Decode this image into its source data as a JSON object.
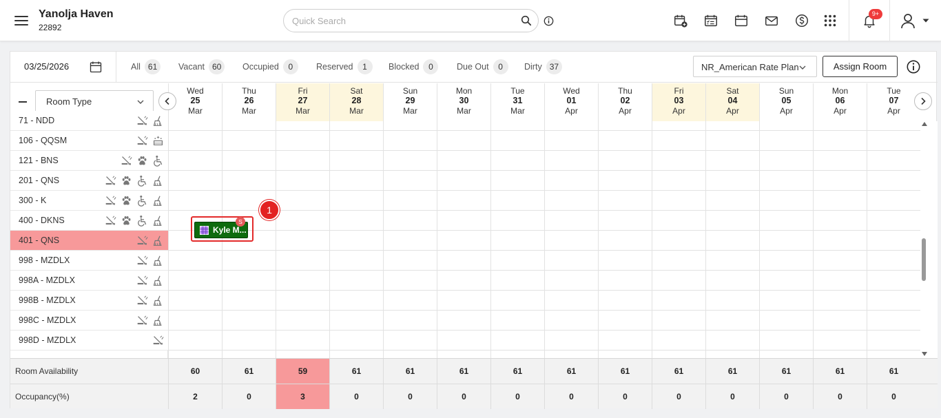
{
  "app": {
    "hotel_name": "Yanolja Haven",
    "hotel_id": "22892"
  },
  "search": {
    "placeholder": "Quick Search"
  },
  "toolbar_icons": [
    "new-reservation-icon",
    "checklist-calendar-icon",
    "calendar-icon",
    "mail-icon",
    "dollar-icon",
    "apps-grid-icon",
    "notification-bell-icon",
    "user-profile-icon"
  ],
  "notifications": {
    "badge": "9+"
  },
  "filters": {
    "date": "03/25/2026",
    "chips": [
      {
        "label": "All",
        "count": "61"
      },
      {
        "label": "Vacant",
        "count": "60"
      },
      {
        "label": "Occupied",
        "count": "0"
      },
      {
        "label": "Reserved",
        "count": "1"
      },
      {
        "label": "Blocked",
        "count": "0"
      },
      {
        "label": "Due Out",
        "count": "0"
      },
      {
        "label": "Dirty",
        "count": "37"
      }
    ],
    "rate_plan": "NR_American Rate Plan",
    "assign_label": "Assign Room"
  },
  "sidebar": {
    "room_type_label": "Room Type"
  },
  "dates": [
    {
      "dow": "Wed",
      "day": "25",
      "month": "Mar",
      "weekend": false
    },
    {
      "dow": "Thu",
      "day": "26",
      "month": "Mar",
      "weekend": false
    },
    {
      "dow": "Fri",
      "day": "27",
      "month": "Mar",
      "weekend": true
    },
    {
      "dow": "Sat",
      "day": "28",
      "month": "Mar",
      "weekend": true
    },
    {
      "dow": "Sun",
      "day": "29",
      "month": "Mar",
      "weekend": false
    },
    {
      "dow": "Mon",
      "day": "30",
      "month": "Mar",
      "weekend": false
    },
    {
      "dow": "Tue",
      "day": "31",
      "month": "Mar",
      "weekend": false
    },
    {
      "dow": "Wed",
      "day": "01",
      "month": "Apr",
      "weekend": false
    },
    {
      "dow": "Thu",
      "day": "02",
      "month": "Apr",
      "weekend": false
    },
    {
      "dow": "Fri",
      "day": "03",
      "month": "Apr",
      "weekend": true
    },
    {
      "dow": "Sat",
      "day": "04",
      "month": "Apr",
      "weekend": true
    },
    {
      "dow": "Sun",
      "day": "05",
      "month": "Apr",
      "weekend": false
    },
    {
      "dow": "Mon",
      "day": "06",
      "month": "Apr",
      "weekend": false
    },
    {
      "dow": "Tue",
      "day": "07",
      "month": "Apr",
      "weekend": false
    }
  ],
  "rooms": [
    {
      "name": "71 - NDD",
      "icons": [
        "no-smoking",
        "housekeeping"
      ],
      "highlight": false
    },
    {
      "name": "106 - QQSM",
      "icons": [
        "no-smoking",
        "clean-sparkle"
      ],
      "highlight": false
    },
    {
      "name": "121 - BNS",
      "icons": [
        "no-smoking",
        "pet",
        "accessible"
      ],
      "highlight": false
    },
    {
      "name": "201 - QNS",
      "icons": [
        "no-smoking",
        "pet",
        "accessible",
        "housekeeping"
      ],
      "highlight": false
    },
    {
      "name": "300 - K",
      "icons": [
        "no-smoking",
        "pet",
        "accessible",
        "housekeeping"
      ],
      "highlight": false
    },
    {
      "name": "400 - DKNS",
      "icons": [
        "no-smoking",
        "pet",
        "accessible",
        "housekeeping"
      ],
      "highlight": false
    },
    {
      "name": "401 - QNS",
      "icons": [
        "no-smoking",
        "housekeeping"
      ],
      "highlight": true
    },
    {
      "name": "998 - MZDLX",
      "icons": [
        "no-smoking",
        "housekeeping"
      ],
      "highlight": false
    },
    {
      "name": "998A - MZDLX",
      "icons": [
        "no-smoking",
        "housekeeping"
      ],
      "highlight": false
    },
    {
      "name": "998B - MZDLX",
      "icons": [
        "no-smoking",
        "housekeeping"
      ],
      "highlight": false
    },
    {
      "name": "998C - MZDLX",
      "icons": [
        "no-smoking",
        "housekeeping"
      ],
      "highlight": false
    },
    {
      "name": "998D - MZDLX",
      "icons": [
        "no-smoking"
      ],
      "highlight": false
    }
  ],
  "reservation": {
    "label": "Kyle M...",
    "badge": "S",
    "callout": "1"
  },
  "footer": {
    "availability_label": "Room Availability",
    "availability": [
      "60",
      "61",
      "59",
      "61",
      "61",
      "61",
      "61",
      "61",
      "61",
      "61",
      "61",
      "61",
      "61",
      "61"
    ],
    "availability_highlight": 2,
    "occupancy_label": "Occupancy(%)",
    "occupancy": [
      "2",
      "0",
      "3",
      "0",
      "0",
      "0",
      "0",
      "0",
      "0",
      "0",
      "0",
      "0",
      "0",
      "0"
    ],
    "occupancy_highlight": 2
  }
}
